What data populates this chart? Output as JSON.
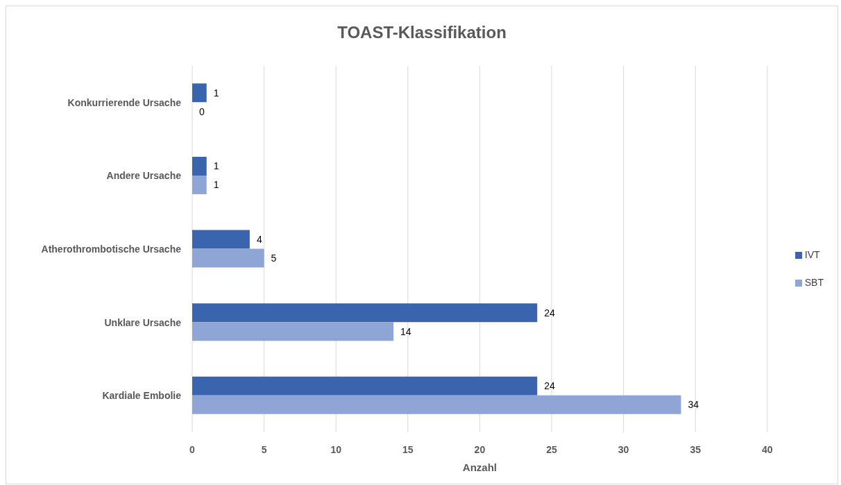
{
  "chart_data": {
    "type": "bar",
    "orientation": "horizontal",
    "title": "TOAST-Klassifikation",
    "xlabel": "Anzahl",
    "categories": [
      "Konkurrierende Ursache",
      "Andere Ursache",
      "Atherothrombotische Ursache",
      "Unklare Ursache",
      "Kardiale Embolie"
    ],
    "series": [
      {
        "name": "IVT",
        "color": "#3a64ad",
        "values": [
          1,
          1,
          4,
          24,
          24
        ]
      },
      {
        "name": "SBT",
        "color": "#8fa5d6",
        "values": [
          0,
          1,
          5,
          14,
          34
        ]
      }
    ],
    "xlim": [
      0,
      40
    ],
    "xticks": [
      0,
      5,
      10,
      15,
      20,
      25,
      30,
      35,
      40
    ],
    "grid": "x",
    "legend": "right",
    "data_labels": true
  }
}
